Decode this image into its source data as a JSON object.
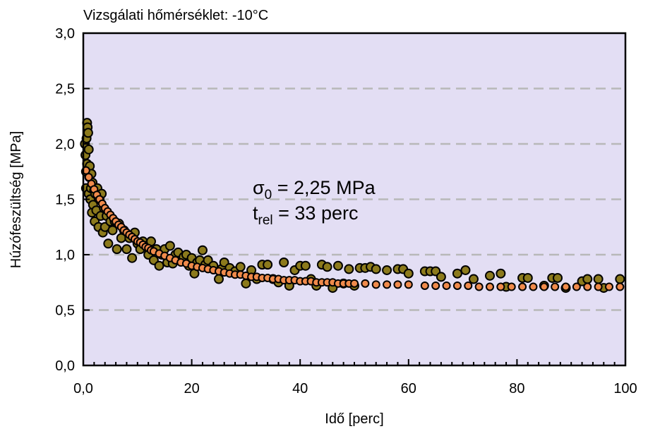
{
  "chart_data": {
    "type": "scatter",
    "title": "Vizsgálati hőmérséklet: -10°C",
    "xlabel": "Idő [perc]",
    "ylabel": "Húzófeszültség [MPa]",
    "xlim": [
      0,
      100
    ],
    "ylim": [
      0,
      3
    ],
    "x_ticks": [
      "0,0",
      "20",
      "40",
      "60",
      "80",
      "100"
    ],
    "y_ticks": [
      "0,0",
      "0,5",
      "1,0",
      "1,5",
      "2,0",
      "2,5",
      "3,0"
    ],
    "grid": "horizontal dashed",
    "plot_background": "#e3def4",
    "annotation": {
      "sigma_symbol": "σ",
      "sigma_sub": "0",
      "sigma_text": " = 2,25 MPa",
      "t_symbol": "t",
      "t_sub": "rel",
      "t_text": " = 33 perc"
    },
    "series": [
      {
        "color": "#8c7a1c",
        "points": [
          [
            0.3,
            2.0
          ],
          [
            0.4,
            1.9
          ],
          [
            0.5,
            1.75
          ],
          [
            0.5,
            1.6
          ],
          [
            0.6,
            2.05
          ],
          [
            0.7,
            2.19
          ],
          [
            0.7,
            1.82
          ],
          [
            0.8,
            2.15
          ],
          [
            0.9,
            2.1
          ],
          [
            1.0,
            1.95
          ],
          [
            1.0,
            1.55
          ],
          [
            1.1,
            1.7
          ],
          [
            1.2,
            1.8
          ],
          [
            1.3,
            1.5
          ],
          [
            1.4,
            1.6
          ],
          [
            1.5,
            1.73
          ],
          [
            1.6,
            1.38
          ],
          [
            1.7,
            1.65
          ],
          [
            1.8,
            1.45
          ],
          [
            2.0,
            1.58
          ],
          [
            2.1,
            1.3
          ],
          [
            2.2,
            1.55
          ],
          [
            2.4,
            1.4
          ],
          [
            2.6,
            1.6
          ],
          [
            2.8,
            1.25
          ],
          [
            3.0,
            1.5
          ],
          [
            3.2,
            1.35
          ],
          [
            3.4,
            1.55
          ],
          [
            3.6,
            1.2
          ],
          [
            3.8,
            1.42
          ],
          [
            4.0,
            1.25
          ],
          [
            4.3,
            1.35
          ],
          [
            4.6,
            1.1
          ],
          [
            5.0,
            1.3
          ],
          [
            5.4,
            1.22
          ],
          [
            5.8,
            1.3
          ],
          [
            6.2,
            1.05
          ],
          [
            6.6,
            1.28
          ],
          [
            7.0,
            1.15
          ],
          [
            7.5,
            1.22
          ],
          [
            8.0,
            1.05
          ],
          [
            8.5,
            1.15
          ],
          [
            9.0,
            0.97
          ],
          [
            9.5,
            1.2
          ],
          [
            10.0,
            1.1
          ],
          [
            10.5,
            1.05
          ],
          [
            11.0,
            1.12
          ],
          [
            11.5,
            1.08
          ],
          [
            12.0,
            1.0
          ],
          [
            12.5,
            1.12
          ],
          [
            13.0,
            0.95
          ],
          [
            13.5,
            1.05
          ],
          [
            14.0,
            0.9
          ],
          [
            14.5,
            1.0
          ],
          [
            15.0,
            1.05
          ],
          [
            15.5,
            0.93
          ],
          [
            16.0,
            1.08
          ],
          [
            16.5,
            0.92
          ],
          [
            17.0,
            1.0
          ],
          [
            17.5,
            1.02
          ],
          [
            18.0,
            0.95
          ],
          [
            18.5,
            0.98
          ],
          [
            19.0,
            1.0
          ],
          [
            19.5,
            0.9
          ],
          [
            20.0,
            0.97
          ],
          [
            20.5,
            0.83
          ],
          [
            21.0,
            0.93
          ],
          [
            21.5,
            0.95
          ],
          [
            22.0,
            1.04
          ],
          [
            22.5,
            0.91
          ],
          [
            23.0,
            0.95
          ],
          [
            24.0,
            0.9
          ],
          [
            25.0,
            0.78
          ],
          [
            25.5,
            0.87
          ],
          [
            26.0,
            0.93
          ],
          [
            27.0,
            0.88
          ],
          [
            28.0,
            0.85
          ],
          [
            29.0,
            0.89
          ],
          [
            30.0,
            0.74
          ],
          [
            31.0,
            0.86
          ],
          [
            32.0,
            0.78
          ],
          [
            33.0,
            0.91
          ],
          [
            34.0,
            0.91
          ],
          [
            35.0,
            0.78
          ],
          [
            36.0,
            0.75
          ],
          [
            37.0,
            0.93
          ],
          [
            38.0,
            0.72
          ],
          [
            39.0,
            0.86
          ],
          [
            40.0,
            0.9
          ],
          [
            41.0,
            0.9
          ],
          [
            42.0,
            0.78
          ],
          [
            43.0,
            0.72
          ],
          [
            44.0,
            0.91
          ],
          [
            45.0,
            0.89
          ],
          [
            46.0,
            0.7
          ],
          [
            47.0,
            0.9
          ],
          [
            48.0,
            0.74
          ],
          [
            49.0,
            0.87
          ],
          [
            50.0,
            0.72
          ],
          [
            51.0,
            0.88
          ],
          [
            52.0,
            0.88
          ],
          [
            53.0,
            0.89
          ],
          [
            54.0,
            0.87
          ],
          [
            56.0,
            0.86
          ],
          [
            58.0,
            0.87
          ],
          [
            59.0,
            0.87
          ],
          [
            60.0,
            0.83
          ],
          [
            63.0,
            0.85
          ],
          [
            64.0,
            0.85
          ],
          [
            65.0,
            0.85
          ],
          [
            66.0,
            0.8
          ],
          [
            69.0,
            0.83
          ],
          [
            70.5,
            0.86
          ],
          [
            72.0,
            0.78
          ],
          [
            75.0,
            0.81
          ],
          [
            77.0,
            0.83
          ],
          [
            78.0,
            0.71
          ],
          [
            81.0,
            0.79
          ],
          [
            82.0,
            0.79
          ],
          [
            85.0,
            0.72
          ],
          [
            86.5,
            0.79
          ],
          [
            87.5,
            0.79
          ],
          [
            89.0,
            0.7
          ],
          [
            92.0,
            0.76
          ],
          [
            93.0,
            0.78
          ],
          [
            95.0,
            0.78
          ],
          [
            96.0,
            0.7
          ],
          [
            99.0,
            0.78
          ]
        ]
      },
      {
        "color": "#f08a4b",
        "points": [
          [
            0.5,
            1.76
          ],
          [
            1.0,
            1.7
          ],
          [
            1.5,
            1.64
          ],
          [
            2.0,
            1.59
          ],
          [
            2.5,
            1.54
          ],
          [
            3.0,
            1.5
          ],
          [
            3.5,
            1.46
          ],
          [
            4.0,
            1.42
          ],
          [
            4.5,
            1.39
          ],
          [
            5.0,
            1.36
          ],
          [
            5.5,
            1.33
          ],
          [
            6.0,
            1.3
          ],
          [
            6.5,
            1.27
          ],
          [
            7.0,
            1.25
          ],
          [
            7.5,
            1.22
          ],
          [
            8.0,
            1.2
          ],
          [
            8.5,
            1.18
          ],
          [
            9.0,
            1.16
          ],
          [
            9.5,
            1.14
          ],
          [
            10.0,
            1.12
          ],
          [
            10.5,
            1.11
          ],
          [
            11.0,
            1.09
          ],
          [
            11.5,
            1.07
          ],
          [
            12.0,
            1.06
          ],
          [
            12.5,
            1.04
          ],
          [
            13.0,
            1.03
          ],
          [
            14.0,
            1.01
          ],
          [
            15.0,
            0.99
          ],
          [
            16.0,
            0.97
          ],
          [
            17.0,
            0.95
          ],
          [
            18.0,
            0.93
          ],
          [
            19.0,
            0.92
          ],
          [
            20.0,
            0.9
          ],
          [
            21.0,
            0.89
          ],
          [
            22.0,
            0.88
          ],
          [
            23.0,
            0.87
          ],
          [
            24.0,
            0.86
          ],
          [
            25.0,
            0.85
          ],
          [
            26.0,
            0.84
          ],
          [
            27.0,
            0.83
          ],
          [
            28.0,
            0.82
          ],
          [
            29.0,
            0.82
          ],
          [
            30.0,
            0.81
          ],
          [
            31.0,
            0.8
          ],
          [
            32.0,
            0.8
          ],
          [
            33.0,
            0.79
          ],
          [
            34.0,
            0.79
          ],
          [
            35.0,
            0.78
          ],
          [
            36.0,
            0.78
          ],
          [
            37.0,
            0.77
          ],
          [
            38.0,
            0.77
          ],
          [
            39.0,
            0.77
          ],
          [
            40.0,
            0.76
          ],
          [
            41.0,
            0.76
          ],
          [
            42.0,
            0.76
          ],
          [
            43.0,
            0.75
          ],
          [
            44.0,
            0.75
          ],
          [
            45.0,
            0.75
          ],
          [
            46.0,
            0.75
          ],
          [
            47.0,
            0.74
          ],
          [
            48.0,
            0.74
          ],
          [
            49.0,
            0.74
          ],
          [
            50.0,
            0.74
          ],
          [
            52.0,
            0.74
          ],
          [
            54.0,
            0.73
          ],
          [
            56.0,
            0.73
          ],
          [
            58.0,
            0.73
          ],
          [
            60.0,
            0.73
          ],
          [
            63.0,
            0.72
          ],
          [
            65.0,
            0.72
          ],
          [
            67.0,
            0.72
          ],
          [
            69.0,
            0.72
          ],
          [
            71.0,
            0.72
          ],
          [
            73.0,
            0.71
          ],
          [
            75.0,
            0.71
          ],
          [
            77.0,
            0.71
          ],
          [
            79.0,
            0.71
          ],
          [
            81.0,
            0.71
          ],
          [
            83.0,
            0.71
          ],
          [
            85.0,
            0.71
          ],
          [
            87.0,
            0.71
          ],
          [
            89.0,
            0.71
          ],
          [
            91.0,
            0.71
          ],
          [
            93.0,
            0.71
          ],
          [
            95.0,
            0.71
          ],
          [
            97.0,
            0.71
          ],
          [
            99.0,
            0.71
          ]
        ]
      }
    ]
  }
}
